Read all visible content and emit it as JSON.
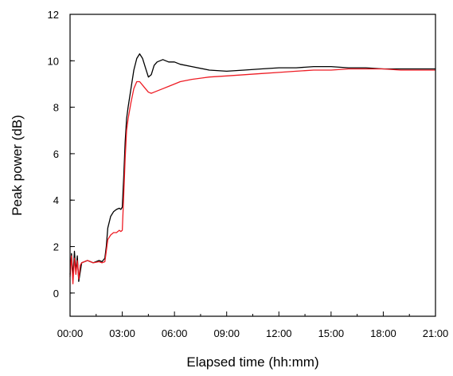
{
  "chart_data": {
    "type": "line",
    "title": "",
    "xlabel": "Elapsed time (hh:mm)",
    "ylabel": "Peak power (dB)",
    "xlim": [
      0,
      1260
    ],
    "ylim": [
      -1,
      12
    ],
    "x_tick_values": [
      0,
      180,
      360,
      540,
      720,
      900,
      1080,
      1260
    ],
    "x_tick_labels": [
      "00:00",
      "03:00",
      "06:00",
      "09:00",
      "12:00",
      "15:00",
      "18:00",
      "21:00"
    ],
    "y_tick_values": [
      0,
      2,
      4,
      6,
      8,
      10,
      12
    ],
    "y_tick_labels": [
      "0",
      "2",
      "4",
      "6",
      "8",
      "10",
      "12"
    ],
    "grid": false,
    "legend": false,
    "series": [
      {
        "color": "#000000",
        "x": [
          0,
          5,
          10,
          15,
          20,
          25,
          30,
          40,
          60,
          80,
          100,
          110,
          120,
          125,
          130,
          140,
          150,
          160,
          170,
          175,
          180,
          185,
          190,
          195,
          200,
          210,
          220,
          230,
          240,
          250,
          260,
          270,
          280,
          290,
          300,
          310,
          320,
          330,
          340,
          360,
          380,
          420,
          480,
          540,
          600,
          660,
          720,
          780,
          840,
          900,
          960,
          1020,
          1080,
          1140,
          1200,
          1260
        ],
        "y": [
          0.8,
          1.7,
          0.7,
          1.8,
          0.9,
          1.6,
          0.5,
          1.3,
          1.4,
          1.3,
          1.4,
          1.35,
          1.5,
          2.0,
          2.8,
          3.3,
          3.5,
          3.6,
          3.65,
          3.6,
          3.7,
          5.0,
          6.5,
          7.5,
          8.0,
          8.8,
          9.6,
          10.1,
          10.3,
          10.1,
          9.7,
          9.3,
          9.4,
          9.8,
          9.95,
          10.0,
          10.05,
          10.0,
          9.95,
          9.95,
          9.85,
          9.75,
          9.6,
          9.55,
          9.6,
          9.65,
          9.7,
          9.7,
          9.75,
          9.75,
          9.7,
          9.7,
          9.65,
          9.65,
          9.65,
          9.65
        ]
      },
      {
        "color": "#ee1c24",
        "x": [
          0,
          5,
          10,
          15,
          20,
          25,
          30,
          35,
          40,
          60,
          80,
          100,
          110,
          120,
          125,
          130,
          140,
          150,
          160,
          170,
          175,
          180,
          185,
          190,
          195,
          200,
          210,
          220,
          230,
          240,
          250,
          260,
          270,
          280,
          290,
          300,
          320,
          340,
          360,
          380,
          420,
          480,
          540,
          600,
          660,
          720,
          780,
          840,
          900,
          960,
          1020,
          1080,
          1140,
          1200,
          1260
        ],
        "y": [
          0.7,
          1.6,
          0.4,
          1.5,
          0.8,
          1.4,
          0.6,
          1.2,
          1.3,
          1.4,
          1.3,
          1.35,
          1.3,
          1.35,
          1.8,
          2.3,
          2.5,
          2.6,
          2.6,
          2.7,
          2.65,
          2.7,
          4.2,
          5.8,
          7.0,
          7.5,
          8.2,
          8.8,
          9.1,
          9.1,
          8.95,
          8.8,
          8.65,
          8.6,
          8.65,
          8.7,
          8.8,
          8.9,
          9.0,
          9.1,
          9.2,
          9.3,
          9.35,
          9.4,
          9.45,
          9.5,
          9.55,
          9.6,
          9.6,
          9.65,
          9.65,
          9.65,
          9.6,
          9.6,
          9.6
        ]
      }
    ]
  }
}
